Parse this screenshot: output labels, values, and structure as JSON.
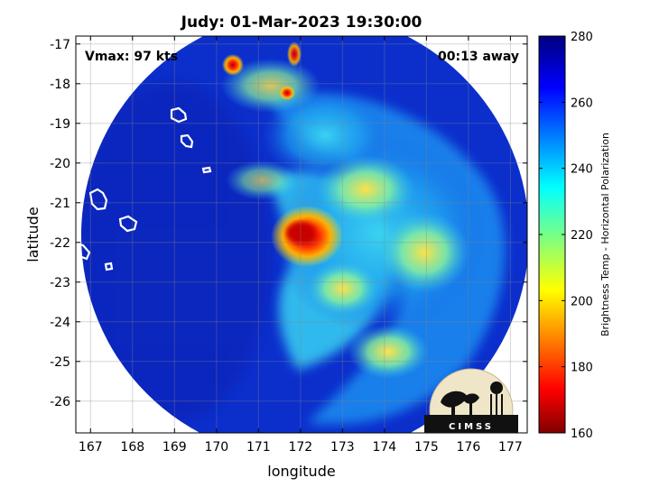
{
  "title": "Judy: 01-Mar-2023 19:30:00",
  "annotations": {
    "vmax": "Vmax: 97 kts",
    "time_away": "00:13 away"
  },
  "chart_data": {
    "type": "heatmap",
    "title": "Judy: 01-Mar-2023 19:30:00",
    "xlabel": "longitude",
    "ylabel": "latitude",
    "x_ticks": [
      167,
      168,
      169,
      170,
      171,
      172,
      173,
      174,
      175,
      176,
      177
    ],
    "y_ticks": [
      -17,
      -18,
      -19,
      -20,
      -21,
      -22,
      -23,
      -24,
      -25,
      -26
    ],
    "xlim": [
      166.65,
      177.4
    ],
    "ylim": [
      -26.8,
      -16.8
    ],
    "grid": true,
    "colorbar": {
      "label": "Brightness Temp - Horizontal Polarization",
      "min": 160,
      "max": 280,
      "ticks": [
        160,
        180,
        200,
        220,
        240,
        260,
        280
      ],
      "colormap": "jet"
    },
    "features": {
      "swath_center": [
        172.1,
        -21.9
      ],
      "storm_center": [
        172.1,
        -22.0
      ],
      "min_temp": 170
    }
  },
  "logo": {
    "text": "CIMSS"
  },
  "colors": {
    "cold": "#0a28c8",
    "background": "#ffffff",
    "coast": "#ffffff"
  }
}
